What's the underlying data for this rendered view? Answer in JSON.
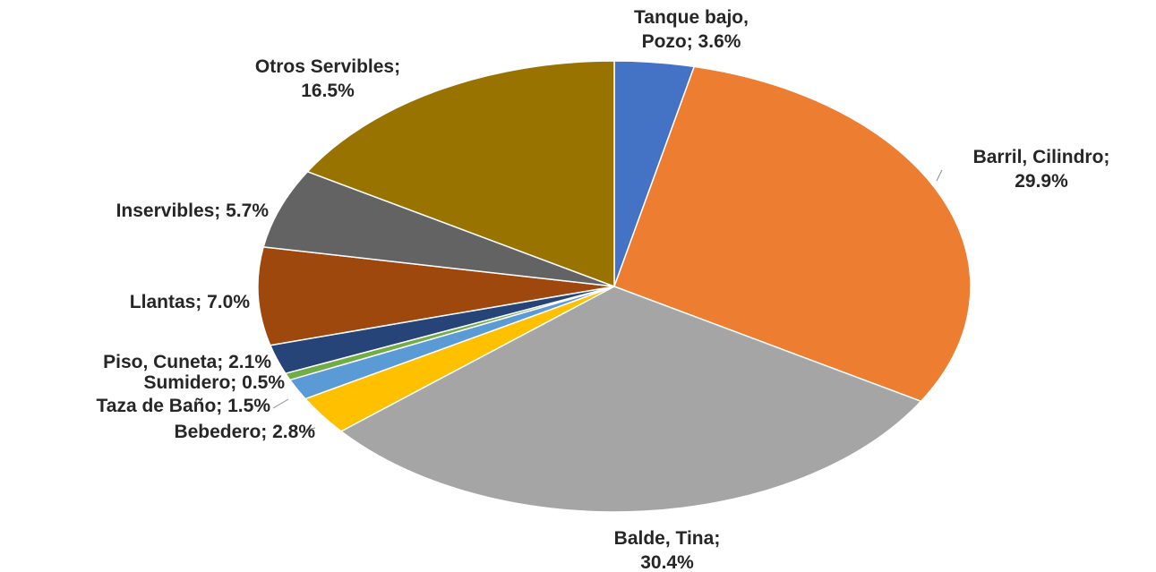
{
  "chart_data": {
    "type": "pie",
    "title": "",
    "start_angle_deg": 0,
    "direction": "clockwise",
    "legend": "none",
    "slices": [
      {
        "label": "Tanque bajo, Pozo",
        "value": 3.6,
        "display": "3.6%",
        "color": "#4472c4",
        "label_lines": [
          "Tanque bajo,",
          "Pozo; 3.6%"
        ]
      },
      {
        "label": "Barril, Cilindro",
        "value": 29.9,
        "display": "29.9%",
        "color": "#ed7d31",
        "label_lines": [
          "Barril, Cilindro;",
          "29.9%"
        ]
      },
      {
        "label": "Balde, Tina",
        "value": 30.4,
        "display": "30.4%",
        "color": "#a5a5a5",
        "label_lines": [
          "Balde, Tina;",
          "30.4%"
        ]
      },
      {
        "label": "Bebedero",
        "value": 2.8,
        "display": "2.8%",
        "color": "#ffc000",
        "label_lines": [
          "Bebedero; 2.8%"
        ]
      },
      {
        "label": "Taza de Baño",
        "value": 1.5,
        "display": "1.5%",
        "color": "#5b9bd5",
        "label_lines": [
          "Taza de Baño; 1.5%"
        ]
      },
      {
        "label": "Sumidero",
        "value": 0.5,
        "display": "0.5%",
        "color": "#70ad47",
        "label_lines": [
          "Sumidero; 0.5%"
        ]
      },
      {
        "label": "Piso, Cuneta",
        "value": 2.1,
        "display": "2.1%",
        "color": "#264478",
        "label_lines": [
          "Piso, Cuneta; 2.1%"
        ]
      },
      {
        "label": "Llantas",
        "value": 7.0,
        "display": "7.0%",
        "color": "#9e480e",
        "label_lines": [
          "Llantas; 7.0%"
        ]
      },
      {
        "label": "Inservibles",
        "value": 5.7,
        "display": "5.7%",
        "color": "#636363",
        "label_lines": [
          "Inservibles; 5.7%"
        ]
      },
      {
        "label": "Otros Servibles",
        "value": 16.5,
        "display": "16.5%",
        "color": "#997300",
        "label_lines": [
          "Otros Servibles;",
          "16.5%"
        ]
      }
    ]
  }
}
